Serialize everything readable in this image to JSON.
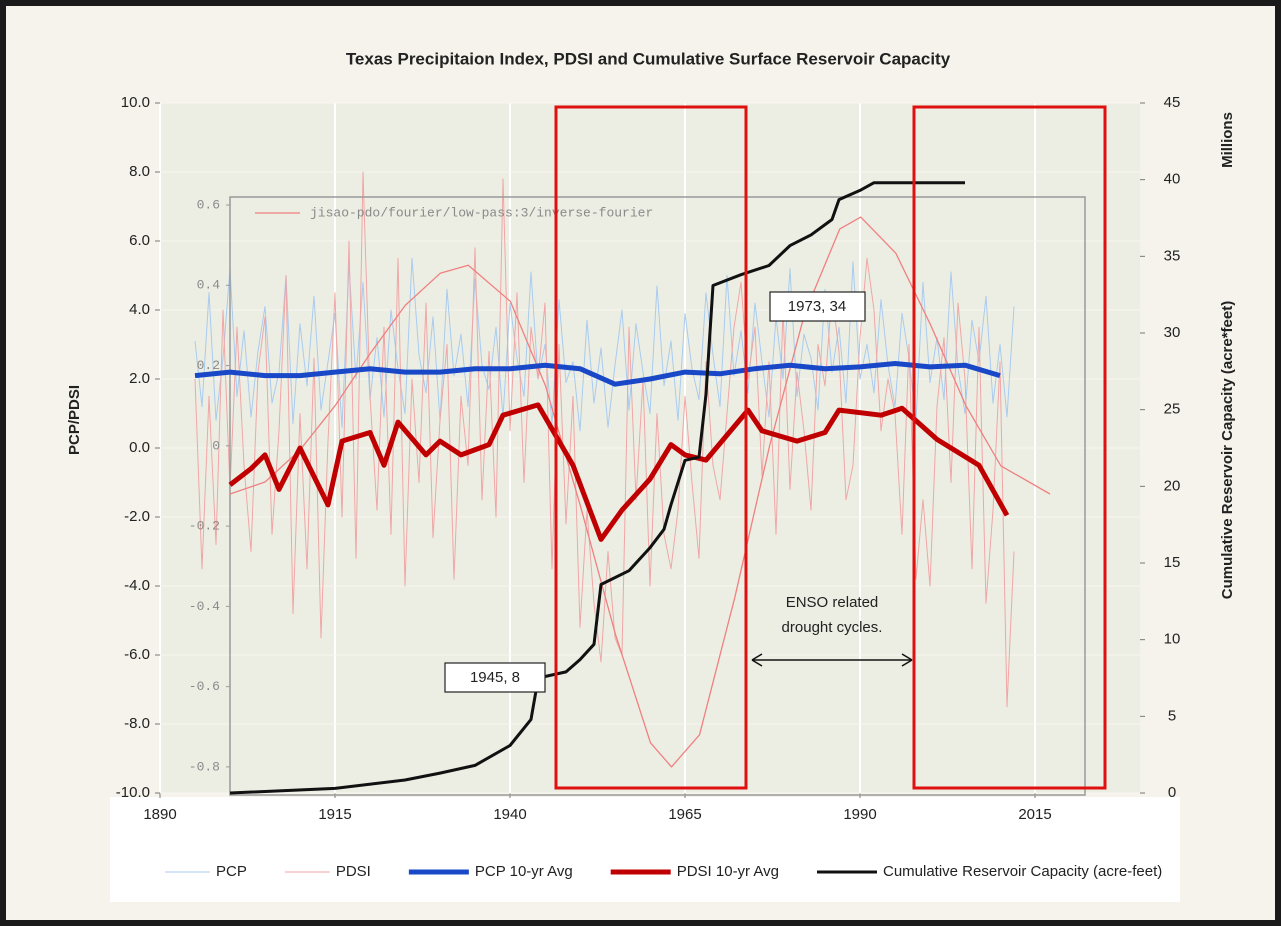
{
  "chart_data": [
    {
      "type": "line",
      "title": "Texas Precipitaion Index, PDSI and Cumulative Surface Reservoir Capacity",
      "ylabel": "PCP/PDSI",
      "y2label": "Cumulative Reservoir Capacity (acre*feet)",
      "y2unit": "Millions",
      "xlim": [
        1890,
        2030
      ],
      "xticks": [
        1890,
        1915,
        1940,
        1965,
        1990,
        2015
      ],
      "ylim": [
        -10,
        10
      ],
      "yticks": [
        {
          "value": -10,
          "label": "-10.0"
        },
        {
          "value": -8,
          "label": "-8.0"
        },
        {
          "value": -6,
          "label": "-6.0"
        },
        {
          "value": -4,
          "label": "-4.0"
        },
        {
          "value": -2,
          "label": "-2.0"
        },
        {
          "value": 0,
          "label": "0.0"
        },
        {
          "value": 2,
          "label": "2.0"
        },
        {
          "value": 4,
          "label": "4.0"
        },
        {
          "value": 6,
          "label": "6.0"
        },
        {
          "value": 8,
          "label": "8.0"
        },
        {
          "value": 10,
          "label": "10.0"
        }
      ],
      "y2lim": [
        0,
        45
      ],
      "y2ticks": [
        0,
        5,
        10,
        15,
        20,
        25,
        30,
        35,
        40,
        45
      ],
      "grid": true,
      "legend": "bottom",
      "x": [
        1895,
        1896,
        1897,
        1898,
        1899,
        1900,
        1901,
        1902,
        1903,
        1904,
        1905,
        1906,
        1907,
        1908,
        1909,
        1910,
        1911,
        1912,
        1913,
        1914,
        1915,
        1916,
        1917,
        1918,
        1919,
        1920,
        1921,
        1922,
        1923,
        1924,
        1925,
        1926,
        1927,
        1928,
        1929,
        1930,
        1931,
        1932,
        1933,
        1934,
        1935,
        1936,
        1937,
        1938,
        1939,
        1940,
        1941,
        1942,
        1943,
        1944,
        1945,
        1946,
        1947,
        1948,
        1949,
        1950,
        1951,
        1952,
        1953,
        1954,
        1955,
        1956,
        1957,
        1958,
        1959,
        1960,
        1961,
        1962,
        1963,
        1964,
        1965,
        1966,
        1967,
        1968,
        1969,
        1970,
        1971,
        1972,
        1973,
        1974,
        1975,
        1976,
        1977,
        1978,
        1979,
        1980,
        1981,
        1982,
        1983,
        1984,
        1985,
        1986,
        1987,
        1988,
        1989,
        1990,
        1991,
        1992,
        1993,
        1994,
        1995,
        1996,
        1997,
        1998,
        1999,
        2000,
        2001,
        2002,
        2003,
        2004,
        2005,
        2006,
        2007,
        2008,
        2009,
        2010,
        2011,
        2012
      ],
      "series": [
        {
          "name": "PCP",
          "color": "#a9cbef",
          "width": 1,
          "values": [
            3.1,
            1.2,
            4.5,
            0.8,
            2.6,
            5.2,
            1.5,
            3.4,
            0.9,
            2.8,
            4.1,
            1.3,
            2.2,
            5.0,
            0.7,
            3.6,
            1.8,
            4.4,
            1.1,
            2.5,
            3.9,
            0.6,
            5.3,
            2.0,
            4.8,
            1.4,
            3.2,
            0.9,
            4.0,
            2.3,
            1.0,
            5.5,
            2.7,
            1.6,
            3.8,
            0.8,
            4.6,
            2.1,
            3.3,
            1.2,
            4.9,
            2.4,
            1.7,
            3.5,
            0.9,
            4.2,
            2.6,
            1.5,
            5.1,
            2.0,
            3.0,
            0.7,
            4.3,
            1.9,
            2.5,
            0.5,
            3.7,
            1.3,
            2.9,
            0.6,
            2.4,
            4.0,
            1.1,
            3.6,
            2.2,
            1.0,
            4.7,
            1.8,
            3.1,
            0.8,
            3.9,
            2.3,
            1.4,
            4.5,
            2.7,
            1.2,
            5.0,
            2.1,
            3.4,
            1.6,
            4.2,
            2.5,
            0.9,
            3.8,
            2.0,
            5.2,
            1.5,
            3.3,
            2.6,
            1.1,
            4.6,
            2.2,
            3.5,
            1.3,
            5.4,
            2.0,
            3.0,
            1.6,
            4.3,
            2.4,
            1.2,
            3.9,
            2.6,
            0.8,
            4.8,
            1.9,
            3.2,
            1.4,
            5.1,
            2.3,
            1.0,
            3.7,
            2.5,
            4.4,
            1.3,
            3.0,
            0.9,
            4.1
          ]
        },
        {
          "name": "PDSI",
          "color": "#f0a6a6",
          "width": 1,
          "values": [
            2.0,
            -3.5,
            1.5,
            -2.8,
            4.0,
            -1.2,
            3.5,
            -0.5,
            -3.0,
            2.2,
            3.8,
            -2.5,
            0.5,
            5.0,
            -4.8,
            1.0,
            -3.5,
            2.6,
            -5.5,
            0.2,
            4.5,
            -2.0,
            6.0,
            -3.2,
            8.0,
            1.5,
            -1.8,
            3.5,
            -2.5,
            5.5,
            -4.0,
            2.0,
            -1.0,
            4.2,
            -2.6,
            0.8,
            3.0,
            -3.8,
            1.5,
            -0.5,
            5.8,
            -1.5,
            2.8,
            -2.0,
            7.8,
            0.5,
            4.5,
            -1.0,
            3.5,
            2.0,
            4.2,
            -3.5,
            3.0,
            -2.2,
            1.5,
            -5.2,
            -1.8,
            -4.5,
            -6.2,
            -3.0,
            -5.5,
            -6.0,
            3.5,
            -1.5,
            2.0,
            -4.0,
            1.0,
            -2.5,
            -3.5,
            -1.8,
            1.5,
            -1.0,
            -3.2,
            2.5,
            -0.5,
            -1.5,
            1.0,
            3.5,
            4.8,
            2.0,
            3.5,
            -0.8,
            2.5,
            -2.5,
            4.0,
            -1.2,
            2.2,
            0.5,
            -1.8,
            3.0,
            1.8,
            4.5,
            2.8,
            -1.5,
            -0.5,
            3.2,
            5.5,
            4.0,
            0.5,
            2.0,
            1.0,
            -2.5,
            3.0,
            -3.8,
            -1.5,
            -4.0,
            1.2,
            3.2,
            -1.0,
            4.2,
            2.0,
            -3.5,
            3.5,
            -4.5,
            -1.8,
            2.5,
            -7.5,
            -3.0
          ]
        },
        {
          "name": "PCP 10-yr Avg",
          "color": "#1847c8",
          "width": 5,
          "x": [
            1895,
            1900,
            1905,
            1910,
            1915,
            1920,
            1925,
            1930,
            1935,
            1940,
            1945,
            1950,
            1955,
            1960,
            1965,
            1970,
            1975,
            1980,
            1985,
            1990,
            1995,
            2000,
            2005,
            2010
          ],
          "values": [
            2.1,
            2.2,
            2.1,
            2.1,
            2.2,
            2.3,
            2.2,
            2.2,
            2.3,
            2.3,
            2.4,
            2.3,
            1.85,
            2.0,
            2.2,
            2.15,
            2.3,
            2.4,
            2.3,
            2.35,
            2.45,
            2.35,
            2.4,
            2.1
          ]
        },
        {
          "name": "PDSI 10-yr Avg",
          "color": "#c00000",
          "width": 5,
          "x": [
            1900,
            1903,
            1905,
            1907,
            1910,
            1914,
            1916,
            1920,
            1922,
            1924,
            1928,
            1930,
            1933,
            1937,
            1939,
            1944,
            1949,
            1953,
            1956,
            1960,
            1963,
            1965,
            1968,
            1974,
            1976,
            1981,
            1985,
            1987,
            1993,
            1996,
            2001,
            2007,
            2011
          ],
          "values": [
            -1.07,
            -0.6,
            -0.2,
            -1.2,
            0,
            -1.65,
            0.2,
            0.45,
            -0.5,
            0.75,
            -0.2,
            0.2,
            -0.2,
            0.1,
            0.95,
            1.25,
            -0.5,
            -2.65,
            -1.8,
            -0.9,
            0.1,
            -0.2,
            -0.35,
            1.1,
            0.5,
            0.2,
            0.45,
            1.1,
            0.95,
            1.15,
            0.25,
            -0.5,
            -1.95
          ]
        },
        {
          "name": "Cumulative Reservoir Capacity (acre-feet)",
          "color": "#111111",
          "width": 3,
          "axis": "y2",
          "x": [
            1900,
            1915,
            1925,
            1930,
            1935,
            1940,
            1943,
            1944,
            1945,
            1948,
            1950,
            1952,
            1953,
            1957,
            1960,
            1962,
            1963,
            1965,
            1967,
            1968,
            1969,
            1973,
            1977,
            1980,
            1983,
            1986,
            1987,
            1990,
            1992,
            2005
          ],
          "values": [
            0,
            0.3,
            0.85,
            1.3,
            1.8,
            3.1,
            4.8,
            7.4,
            7.6,
            7.9,
            8.7,
            9.7,
            13.6,
            14.5,
            16,
            17.2,
            18.8,
            21.7,
            21.9,
            26,
            33.1,
            33.8,
            34.4,
            35.7,
            36.4,
            37.4,
            38.7,
            39.3,
            39.8,
            39.8
          ]
        }
      ],
      "annotations": [
        {
          "text": "1945, 8"
        },
        {
          "text": "1973, 34"
        },
        {
          "text": "ENSO related"
        },
        {
          "text": "drought cycles."
        }
      ]
    },
    {
      "type": "line",
      "xlim": [
        1900,
        2022
      ],
      "ylim": [
        -0.87,
        0.62
      ],
      "yticks": [
        -0.8,
        -0.6,
        -0.4,
        -0.2,
        0,
        0.2,
        0.4,
        0.6
      ],
      "series": [
        {
          "name": "jisao-pdo/fourier/low-pass:3/inverse-fourier",
          "color": "#f08080",
          "width": 1.3,
          "x": [
            1900,
            1905,
            1910,
            1915,
            1920,
            1925,
            1930,
            1934,
            1940,
            1945,
            1950,
            1955,
            1960,
            1963,
            1967,
            1972,
            1977,
            1982,
            1987,
            1990,
            1995,
            2000,
            2005,
            2010,
            2017
          ],
          "values": [
            -0.12,
            -0.09,
            -0.01,
            0.1,
            0.23,
            0.35,
            0.43,
            0.45,
            0.36,
            0.15,
            -0.15,
            -0.47,
            -0.74,
            -0.8,
            -0.72,
            -0.38,
            0.0,
            0.33,
            0.54,
            0.57,
            0.48,
            0.3,
            0.1,
            -0.05,
            -0.12
          ]
        }
      ]
    }
  ]
}
